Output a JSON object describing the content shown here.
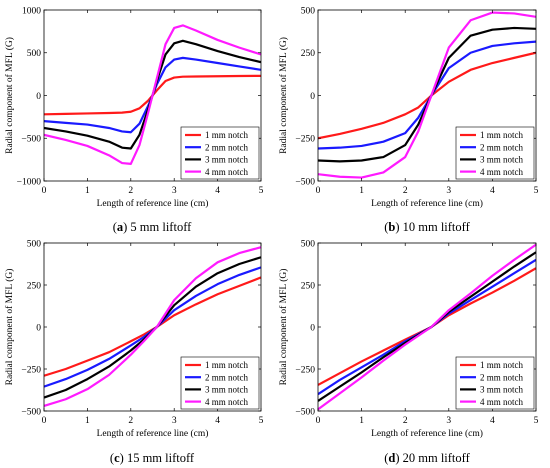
{
  "chart_data": [
    {
      "type": "line",
      "caption_id": "(a)",
      "caption_text": "5 mm liftoff",
      "xlabel": "Length of reference line (cm)",
      "ylabel": "Radial component of MFL (G)",
      "xlim": [
        0,
        5
      ],
      "ylim": [
        -1000,
        1000
      ],
      "xticks": [
        "0",
        "1",
        "2",
        "3",
        "4",
        "5"
      ],
      "yticks": [
        "1000",
        "500",
        "0",
        "−500",
        "−1000"
      ],
      "legend_position": "bottom-right",
      "grid": false,
      "series": [
        {
          "name": "1 mm notch",
          "color": "#ff1a1a",
          "x": [
            0,
            0.5,
            1,
            1.5,
            1.8,
            2,
            2.2,
            2.4,
            2.5,
            2.6,
            2.8,
            3,
            3.2,
            3.5,
            4,
            4.5,
            5
          ],
          "y": [
            -220,
            -215,
            -210,
            -205,
            -200,
            -190,
            -150,
            -60,
            0,
            60,
            170,
            210,
            220,
            222,
            225,
            228,
            230
          ]
        },
        {
          "name": "2 mm notch",
          "color": "#1a1aff",
          "x": [
            0,
            0.5,
            1,
            1.5,
            1.8,
            2,
            2.2,
            2.4,
            2.5,
            2.6,
            2.8,
            3,
            3.2,
            3.5,
            4,
            4.5,
            5
          ],
          "y": [
            -300,
            -320,
            -340,
            -380,
            -420,
            -430,
            -330,
            -120,
            0,
            130,
            330,
            420,
            440,
            420,
            380,
            340,
            300
          ]
        },
        {
          "name": "3 mm notch",
          "color": "#000000",
          "x": [
            0,
            0.5,
            1,
            1.5,
            1.8,
            2,
            2.2,
            2.4,
            2.5,
            2.6,
            2.8,
            3,
            3.2,
            3.5,
            4,
            4.5,
            5
          ],
          "y": [
            -380,
            -420,
            -470,
            -540,
            -610,
            -620,
            -460,
            -160,
            0,
            170,
            480,
            610,
            640,
            600,
            520,
            450,
            390
          ]
        },
        {
          "name": "4 mm notch",
          "color": "#ff1aff",
          "x": [
            0,
            0.5,
            1,
            1.5,
            1.8,
            2,
            2.2,
            2.4,
            2.5,
            2.6,
            2.8,
            3,
            3.2,
            3.5,
            4,
            4.5,
            5
          ],
          "y": [
            -460,
            -520,
            -590,
            -700,
            -790,
            -800,
            -580,
            -200,
            0,
            200,
            600,
            790,
            820,
            760,
            650,
            560,
            480
          ]
        }
      ]
    },
    {
      "type": "line",
      "caption_id": "(b)",
      "caption_text": "10 mm liftoff",
      "xlabel": "Length of reference line (cm)",
      "ylabel": "Radial component of MFL (G)",
      "xlim": [
        0,
        5
      ],
      "ylim": [
        -500,
        500
      ],
      "xticks": [
        "0",
        "1",
        "2",
        "3",
        "4",
        "5"
      ],
      "yticks": [
        "500",
        "250",
        "0",
        "−250",
        "−500"
      ],
      "legend_position": "bottom-right",
      "grid": false,
      "series": [
        {
          "name": "1 mm notch",
          "color": "#ff1a1a",
          "x": [
            0,
            0.5,
            1,
            1.5,
            2,
            2.3,
            2.6,
            3,
            3.5,
            4,
            4.5,
            5
          ],
          "y": [
            -250,
            -225,
            -195,
            -160,
            -110,
            -70,
            0,
            80,
            150,
            190,
            220,
            250
          ]
        },
        {
          "name": "2 mm notch",
          "color": "#1a1aff",
          "x": [
            0,
            0.5,
            1,
            1.5,
            2,
            2.3,
            2.6,
            3,
            3.5,
            4,
            4.5,
            5
          ],
          "y": [
            -310,
            -305,
            -295,
            -270,
            -220,
            -130,
            0,
            160,
            250,
            290,
            305,
            315
          ]
        },
        {
          "name": "3 mm notch",
          "color": "#000000",
          "x": [
            0,
            0.5,
            1,
            1.5,
            2,
            2.3,
            2.6,
            3,
            3.5,
            4,
            4.5,
            5
          ],
          "y": [
            -380,
            -385,
            -380,
            -360,
            -290,
            -170,
            0,
            220,
            350,
            385,
            395,
            390
          ]
        },
        {
          "name": "4 mm notch",
          "color": "#ff1aff",
          "x": [
            0,
            0.5,
            1,
            1.5,
            2,
            2.3,
            2.6,
            3,
            3.5,
            4,
            4.5,
            5
          ],
          "y": [
            -460,
            -475,
            -480,
            -450,
            -360,
            -210,
            0,
            280,
            440,
            485,
            480,
            460
          ]
        }
      ]
    },
    {
      "type": "line",
      "caption_id": "(c)",
      "caption_text": "15 mm liftoff",
      "xlabel": "Length of reference line (cm)",
      "ylabel": "Radial component of MFL (G)",
      "xlim": [
        0,
        5
      ],
      "ylim": [
        -500,
        500
      ],
      "xticks": [
        "0",
        "1",
        "2",
        "3",
        "4",
        "5"
      ],
      "yticks": [
        "500",
        "250",
        "0",
        "−250",
        "−500"
      ],
      "legend_position": "bottom-right",
      "grid": false,
      "series": [
        {
          "name": "1 mm notch",
          "color": "#ff1a1a",
          "x": [
            0,
            0.5,
            1,
            1.5,
            2,
            2.3,
            2.6,
            3,
            3.5,
            4,
            4.5,
            5
          ],
          "y": [
            -290,
            -250,
            -200,
            -150,
            -85,
            -45,
            0,
            70,
            135,
            195,
            245,
            295
          ]
        },
        {
          "name": "2 mm notch",
          "color": "#1a1aff",
          "x": [
            0,
            0.5,
            1,
            1.5,
            2,
            2.3,
            2.6,
            3,
            3.5,
            4,
            4.5,
            5
          ],
          "y": [
            -355,
            -310,
            -255,
            -190,
            -110,
            -60,
            0,
            100,
            185,
            255,
            310,
            355
          ]
        },
        {
          "name": "3 mm notch",
          "color": "#000000",
          "x": [
            0,
            0.5,
            1,
            1.5,
            2,
            2.3,
            2.6,
            3,
            3.5,
            4,
            4.5,
            5
          ],
          "y": [
            -420,
            -375,
            -310,
            -235,
            -140,
            -75,
            0,
            130,
            240,
            320,
            375,
            415
          ]
        },
        {
          "name": "4 mm notch",
          "color": "#ff1aff",
          "x": [
            0,
            0.5,
            1,
            1.5,
            2,
            2.3,
            2.6,
            3,
            3.5,
            4,
            4.5,
            5
          ],
          "y": [
            -470,
            -430,
            -370,
            -285,
            -165,
            -85,
            0,
            160,
            290,
            385,
            440,
            475
          ]
        }
      ]
    },
    {
      "type": "line",
      "caption_id": "(d)",
      "caption_text": "20 mm liftoff",
      "xlabel": "Length of reference line (cm)",
      "ylabel": "Radial component of MFL (G)",
      "xlim": [
        0,
        5
      ],
      "ylim": [
        -500,
        500
      ],
      "xticks": [
        "0",
        "1",
        "2",
        "3",
        "4",
        "5"
      ],
      "yticks": [
        "500",
        "250",
        "0",
        "−250",
        "−500"
      ],
      "legend_position": "bottom-right",
      "grid": false,
      "series": [
        {
          "name": "1 mm notch",
          "color": "#ff1a1a",
          "x": [
            0,
            0.5,
            1,
            1.5,
            2,
            2.6,
            3,
            3.5,
            4,
            4.5,
            5
          ],
          "y": [
            -345,
            -275,
            -205,
            -140,
            -75,
            0,
            70,
            140,
            205,
            275,
            350
          ]
        },
        {
          "name": "2 mm notch",
          "color": "#1a1aff",
          "x": [
            0,
            0.5,
            1,
            1.5,
            2,
            2.6,
            3,
            3.5,
            4,
            4.5,
            5
          ],
          "y": [
            -400,
            -315,
            -240,
            -165,
            -85,
            0,
            80,
            160,
            240,
            320,
            400
          ]
        },
        {
          "name": "3 mm notch",
          "color": "#000000",
          "x": [
            0,
            0.5,
            1,
            1.5,
            2,
            2.6,
            3,
            3.5,
            4,
            4.5,
            5
          ],
          "y": [
            -440,
            -355,
            -270,
            -180,
            -95,
            0,
            90,
            180,
            270,
            360,
            445
          ]
        },
        {
          "name": "4 mm notch",
          "color": "#ff1aff",
          "x": [
            0,
            0.5,
            1,
            1.5,
            2,
            2.6,
            3,
            3.5,
            4,
            4.5,
            5
          ],
          "y": [
            -490,
            -395,
            -300,
            -200,
            -105,
            0,
            100,
            200,
            305,
            400,
            490
          ]
        }
      ]
    }
  ]
}
